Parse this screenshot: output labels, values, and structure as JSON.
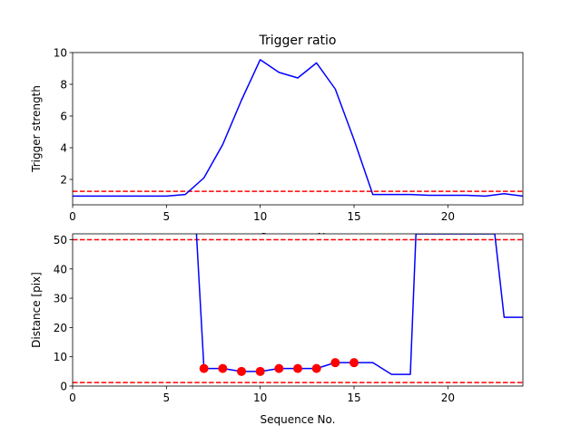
{
  "chart_data": [
    {
      "type": "line",
      "title": "Trigger ratio",
      "xlabel": "Sequence No.",
      "ylabel": "Trigger strength",
      "xlim": [
        0,
        24
      ],
      "ylim": [
        0.4,
        10
      ],
      "xticks": [
        0,
        5,
        10,
        15,
        20
      ],
      "yticks": [
        2,
        4,
        6,
        8,
        10
      ],
      "grid": false,
      "series": [
        {
          "color": "#0000ff",
          "style": "solid",
          "x": [
            0,
            1,
            2,
            3,
            4,
            5,
            6,
            7,
            8,
            9,
            10,
            11,
            12,
            13,
            14,
            15,
            16,
            17,
            18,
            19,
            20,
            21,
            22,
            23,
            24
          ],
          "y": [
            0.95,
            0.95,
            0.95,
            0.95,
            0.95,
            0.95,
            1.05,
            2.1,
            4.2,
            7.0,
            9.55,
            8.75,
            8.4,
            9.35,
            7.7,
            4.5,
            1.05,
            1.05,
            1.05,
            1.0,
            1.0,
            1.0,
            0.95,
            1.1,
            0.95
          ]
        }
      ],
      "hlines": [
        {
          "y": 1.25,
          "color": "#ff0000",
          "style": "dashed"
        }
      ]
    },
    {
      "type": "line",
      "title": "",
      "xlabel": "Sequence No.",
      "ylabel": "Distance [pix]",
      "xlim": [
        0,
        24
      ],
      "ylim": [
        0,
        52
      ],
      "xticks": [
        0,
        5,
        10,
        15,
        20
      ],
      "yticks": [
        0,
        10,
        20,
        30,
        40,
        50
      ],
      "grid": false,
      "series": [
        {
          "color": "#0000ff",
          "style": "solid",
          "x": [
            6.6,
            7,
            8,
            9,
            10,
            11,
            12,
            13,
            14,
            15,
            16,
            17,
            18,
            18.3,
            22.5,
            23,
            24
          ],
          "y": [
            52,
            6,
            6,
            5,
            5,
            6,
            6,
            6,
            8,
            8,
            8,
            4,
            4,
            52,
            52,
            23.5,
            23.5
          ]
        },
        {
          "color": "#ff0000",
          "style": "markers",
          "x": [
            7,
            8,
            9,
            10,
            11,
            12,
            13,
            14,
            15
          ],
          "y": [
            6,
            6,
            5,
            5,
            6,
            6,
            6,
            8,
            8
          ]
        }
      ],
      "hlines": [
        {
          "y": 50,
          "color": "#ff0000",
          "style": "dashed"
        },
        {
          "y": 1.2,
          "color": "#ff0000",
          "style": "dashed"
        }
      ]
    }
  ]
}
